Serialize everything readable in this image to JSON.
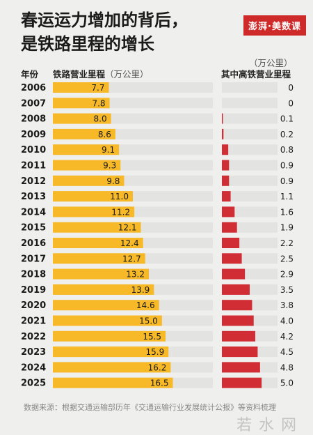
{
  "header": {
    "title_line1": "春运运力增加的背后，",
    "title_line2": "是铁路里程的增长",
    "logo": "澎湃·美数课"
  },
  "columns": {
    "year_label": "年份",
    "left_label": "铁路营业里程",
    "left_unit": "（万公里）",
    "right_unit": "（万公里）",
    "right_label": "其中高铁营业里程"
  },
  "footer": {
    "source": "数据来源：根据交通运输部历年《交通运输行业发展统计公报》等资料梳理",
    "watermark": "若水网"
  },
  "colors": {
    "left_bar": "#f7b928",
    "right_bar": "#d12d35",
    "track": "#e3e3e1"
  },
  "chart_data": {
    "type": "bar",
    "categories": [
      "2006",
      "2007",
      "2008",
      "2009",
      "2010",
      "2011",
      "2012",
      "2013",
      "2014",
      "2015",
      "2016",
      "2017",
      "2018",
      "2019",
      "2020",
      "2021",
      "2022",
      "2023",
      "2024",
      "2025"
    ],
    "series": [
      {
        "name": "铁路营业里程",
        "values": [
          7.7,
          7.8,
          8.0,
          8.6,
          9.1,
          9.3,
          9.8,
          11.0,
          11.2,
          12.1,
          12.4,
          12.7,
          13.2,
          13.9,
          14.6,
          15.0,
          15.5,
          15.9,
          16.2,
          16.5
        ]
      },
      {
        "name": "其中高铁营业里程",
        "values": [
          0,
          0,
          0.1,
          0.2,
          0.8,
          0.9,
          0.9,
          1.1,
          1.6,
          1.9,
          2.2,
          2.5,
          2.9,
          3.5,
          3.8,
          4.0,
          4.2,
          4.5,
          4.8,
          5.0
        ]
      }
    ],
    "labels_left": [
      "7.7",
      "7.8",
      "8.0",
      "8.6",
      "9.1",
      "9.3",
      "9.8",
      "11.0",
      "11.2",
      "12.1",
      "12.4",
      "12.7",
      "13.2",
      "13.9",
      "14.6",
      "15.0",
      "15.5",
      "15.9",
      "16.2",
      "16.5"
    ],
    "labels_right": [
      "0",
      "0",
      "0.1",
      "0.2",
      "0.8",
      "0.9",
      "0.9",
      "1.1",
      "1.6",
      "1.9",
      "2.2",
      "2.5",
      "2.9",
      "3.5",
      "3.8",
      "4.0",
      "4.2",
      "4.5",
      "4.8",
      "5.0"
    ],
    "left_max": 22,
    "right_max": 7
  }
}
